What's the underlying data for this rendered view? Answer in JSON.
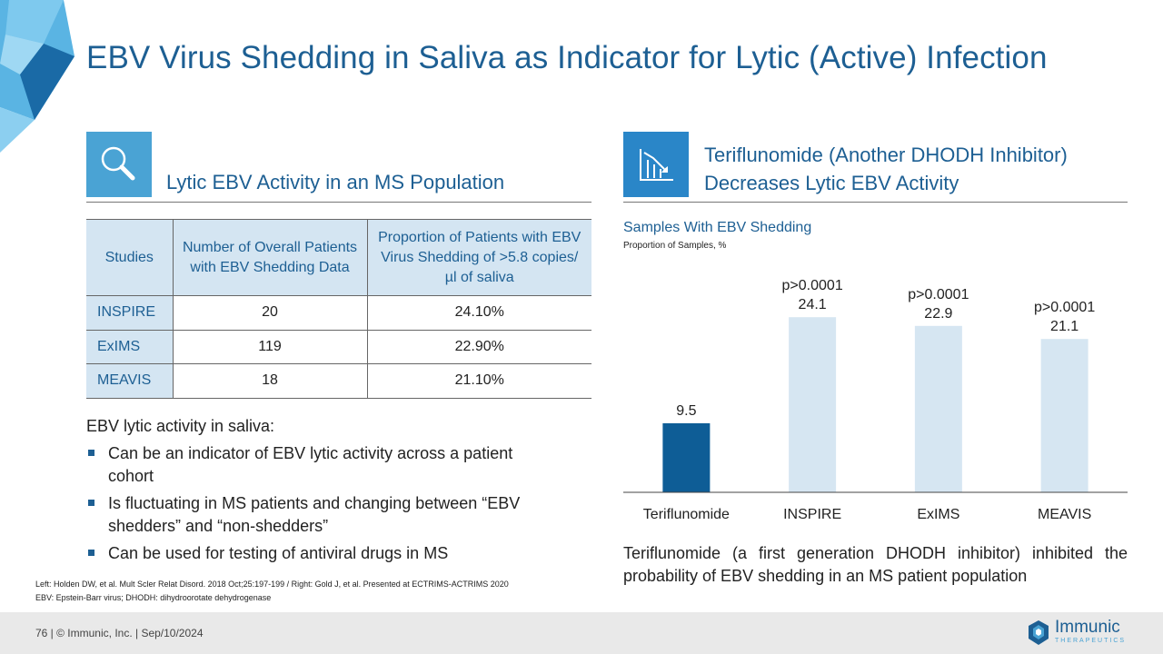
{
  "title": "EBV Virus Shedding in Saliva as Indicator for Lytic (Active) Infection",
  "left": {
    "icon": "magnifier-icon",
    "heading": "Lytic EBV Activity in an MS Population",
    "table": {
      "headers": [
        "Studies",
        "Number of Overall Patients with EBV Shedding Data",
        "Proportion of Patients with EBV Virus Shedding of >5.8 copies/µl of saliva"
      ],
      "rows": [
        {
          "study": "INSPIRE",
          "patients": "20",
          "proportion": "24.10%"
        },
        {
          "study": "ExIMS",
          "patients": "119",
          "proportion": "22.90%"
        },
        {
          "study": "MEAVIS",
          "patients": "18",
          "proportion": "21.10%"
        }
      ]
    },
    "bullets_title": "EBV lytic activity in saliva:",
    "bullets": [
      "Can be an indicator of EBV lytic activity across a patient cohort",
      "Is fluctuating in MS patients and changing between “EBV shedders” and “non-shedders”",
      "Can be used for testing of antiviral drugs in MS"
    ]
  },
  "right": {
    "icon": "declining-bar-chart-icon",
    "heading_line1": "Teriflunomide (Another DHODH Inhibitor)",
    "heading_line2": "Decreases Lytic EBV Activity",
    "bottom_text": "Teriflunomide (a first generation DHODH inhibitor) inhibited the probability of EBV shedding in an MS patient population"
  },
  "chart_data": {
    "type": "bar",
    "title": "Samples With EBV Shedding",
    "subtitle": "Proportion of Samples, %",
    "categories": [
      "Teriflunomide",
      "INSPIRE",
      "ExIMS",
      "MEAVIS"
    ],
    "values": [
      9.5,
      24.1,
      22.9,
      21.1
    ],
    "value_labels": [
      "9.5",
      "24.1",
      "22.9",
      "21.1"
    ],
    "annotations": [
      "",
      "p>0.0001",
      "p>0.0001",
      "p>0.0001"
    ],
    "colors": [
      "#0e5d96",
      "#d6e6f2",
      "#d6e6f2",
      "#d6e6f2"
    ],
    "ylim": [
      0,
      30
    ],
    "grid": false,
    "xlabel": "",
    "ylabel": ""
  },
  "footnotes": [
    "Left: Holden DW, et al. Mult Scler Relat Disord. 2018 Oct;25:197-199 / Right: Gold J, et al. Presented at ECTRIMS-ACTRIMS 2020",
    "EBV: Epstein-Barr virus; DHODH: dihydroorotate dehydrogenase"
  ],
  "footer": {
    "text": "76   |  © Immunic, Inc.  | Sep/10/2024",
    "logo_name": "Immunic",
    "logo_tag": "THERAPEUTICS"
  },
  "colors": {
    "primary": "#1d5f93",
    "light_blue": "#4aa3d4",
    "table_header_bg": "#d4e5f2",
    "footer_bg": "#e9e9e9"
  }
}
